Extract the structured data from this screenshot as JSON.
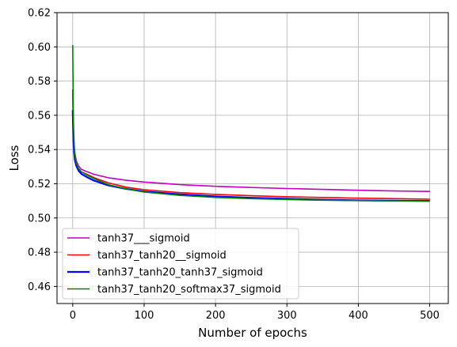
{
  "chart_data": {
    "type": "line",
    "xlabel": "Number of epochs",
    "ylabel": "Loss",
    "xlim": [
      -22,
      526
    ],
    "ylim": [
      0.45,
      0.62
    ],
    "xticks": [
      0,
      100,
      200,
      300,
      400,
      500
    ],
    "yticks": [
      0.46,
      0.48,
      0.5,
      0.52,
      0.54,
      0.56,
      0.58,
      0.6,
      0.62
    ],
    "grid": true,
    "legend_position": "lower-left",
    "x": [
      0,
      1,
      2,
      3,
      5,
      8,
      12,
      20,
      30,
      50,
      75,
      100,
      150,
      200,
      250,
      300,
      350,
      400,
      450,
      500
    ],
    "series": [
      {
        "name": "tanh37___sigmoid",
        "color": "#bf00bf",
        "values": [
          0.573,
          0.551,
          0.543,
          0.538,
          0.5335,
          0.5305,
          0.5285,
          0.527,
          0.5255,
          0.5235,
          0.522,
          0.521,
          0.5195,
          0.5185,
          0.5178,
          0.5172,
          0.5167,
          0.5162,
          0.5158,
          0.5155
        ]
      },
      {
        "name": "tanh37_tanh20__sigmoid",
        "color": "#ff0000",
        "values": [
          0.575,
          0.55,
          0.541,
          0.536,
          0.5315,
          0.529,
          0.527,
          0.5255,
          0.5235,
          0.5205,
          0.518,
          0.5165,
          0.5148,
          0.5138,
          0.513,
          0.5124,
          0.512,
          0.5116,
          0.5113,
          0.511
        ]
      },
      {
        "name": "tanh37_tanh20_tanh37_sigmoid",
        "color": "#0000ff",
        "values": [
          0.563,
          0.545,
          0.538,
          0.534,
          0.5305,
          0.5278,
          0.5258,
          0.5238,
          0.5218,
          0.519,
          0.517,
          0.5155,
          0.5138,
          0.5126,
          0.5118,
          0.5112,
          0.5107,
          0.5103,
          0.5101,
          0.51
        ]
      },
      {
        "name": "tanh37_tanh20_softmax37_sigmoid",
        "color": "#008000",
        "values": [
          0.601,
          0.556,
          0.543,
          0.537,
          0.532,
          0.529,
          0.527,
          0.525,
          0.523,
          0.5195,
          0.517,
          0.5152,
          0.5132,
          0.512,
          0.5113,
          0.5108,
          0.5104,
          0.5102,
          0.51,
          0.5098
        ]
      }
    ]
  }
}
